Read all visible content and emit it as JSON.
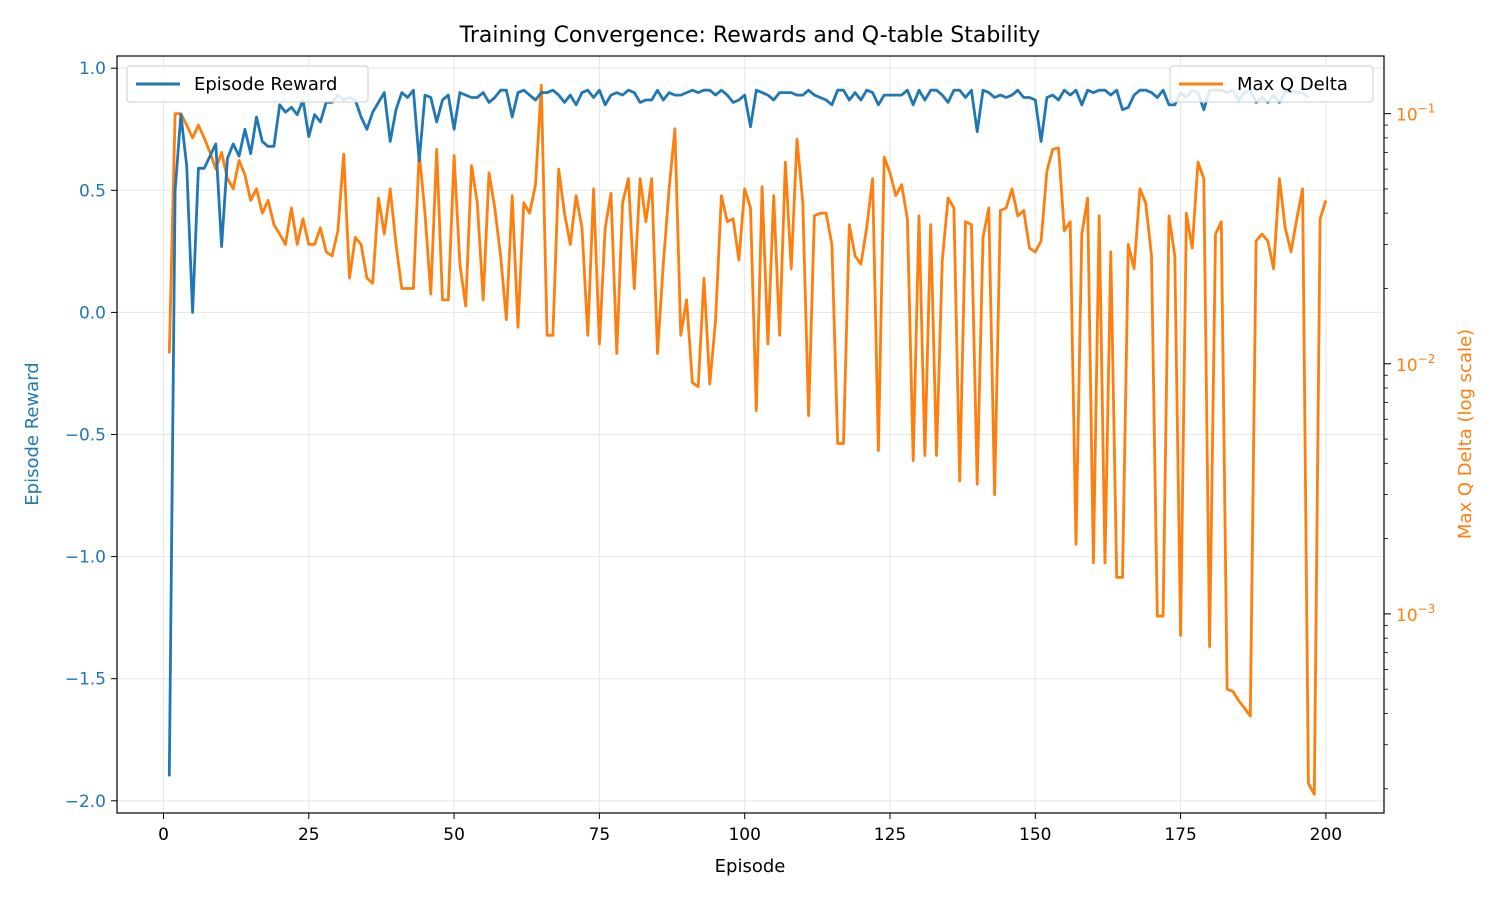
{
  "chart_data": {
    "type": "line",
    "title": "Training Convergence: Rewards and Q-table Stability",
    "xlabel": "Episode",
    "xlim": [
      -8,
      210
    ],
    "xticks": [
      0,
      25,
      50,
      75,
      100,
      125,
      150,
      175,
      200
    ],
    "grid": true,
    "left_axis": {
      "label": "Episode Reward",
      "color": "#1f77b4",
      "ylim": [
        -2.05,
        1.05
      ],
      "ticks": [
        1.0,
        0.5,
        0.0,
        -0.5,
        -1.0,
        -1.5,
        -2.0
      ],
      "tick_labels": [
        "1.0",
        "0.5",
        "0.0",
        "−0.5",
        "−1.0",
        "−1.5",
        "−2.0"
      ]
    },
    "right_axis": {
      "label": "Max Q Delta (log scale)",
      "color": "#ff7f0e",
      "scale": "log",
      "ylim": [
        0.00016,
        0.17
      ],
      "major_ticks": [
        0.001,
        0.01,
        0.1
      ],
      "major_tick_exponents": [
        "−3",
        "−2",
        "−1"
      ],
      "tick_base": "10"
    },
    "legend": [
      {
        "name": "Episode Reward",
        "position": "upper-left"
      },
      {
        "name": "Max Q Delta",
        "position": "upper-right"
      }
    ],
    "series": [
      {
        "name": "Episode Reward",
        "axis": "left",
        "color": "#1f77b4",
        "x_start": 1,
        "values": [
          -1.9,
          0.5,
          0.81,
          0.6,
          0.0,
          0.59,
          0.59,
          0.64,
          0.69,
          0.27,
          0.63,
          0.69,
          0.64,
          0.75,
          0.65,
          0.8,
          0.7,
          0.68,
          0.68,
          0.85,
          0.82,
          0.84,
          0.81,
          0.87,
          0.72,
          0.81,
          0.78,
          0.86,
          0.86,
          0.89,
          0.87,
          0.88,
          0.87,
          0.8,
          0.75,
          0.82,
          0.86,
          0.9,
          0.7,
          0.83,
          0.9,
          0.88,
          0.91,
          0.62,
          0.89,
          0.88,
          0.78,
          0.87,
          0.89,
          0.75,
          0.9,
          0.89,
          0.88,
          0.88,
          0.9,
          0.86,
          0.88,
          0.91,
          0.91,
          0.8,
          0.9,
          0.91,
          0.89,
          0.87,
          0.9,
          0.9,
          0.91,
          0.89,
          0.86,
          0.89,
          0.85,
          0.9,
          0.91,
          0.88,
          0.91,
          0.85,
          0.89,
          0.9,
          0.89,
          0.91,
          0.9,
          0.86,
          0.87,
          0.87,
          0.91,
          0.87,
          0.9,
          0.89,
          0.89,
          0.9,
          0.91,
          0.9,
          0.91,
          0.91,
          0.89,
          0.91,
          0.89,
          0.86,
          0.87,
          0.89,
          0.76,
          0.91,
          0.9,
          0.89,
          0.87,
          0.9,
          0.9,
          0.9,
          0.89,
          0.89,
          0.91,
          0.89,
          0.88,
          0.87,
          0.85,
          0.91,
          0.91,
          0.87,
          0.9,
          0.87,
          0.91,
          0.9,
          0.85,
          0.89,
          0.89,
          0.89,
          0.89,
          0.91,
          0.85,
          0.91,
          0.87,
          0.91,
          0.91,
          0.89,
          0.86,
          0.91,
          0.91,
          0.88,
          0.91,
          0.74,
          0.91,
          0.9,
          0.88,
          0.89,
          0.88,
          0.89,
          0.91,
          0.88,
          0.88,
          0.87,
          0.7,
          0.88,
          0.89,
          0.87,
          0.91,
          0.89,
          0.91,
          0.85,
          0.91,
          0.9,
          0.91,
          0.91,
          0.89,
          0.91,
          0.83,
          0.84,
          0.89,
          0.91,
          0.91,
          0.9,
          0.88,
          0.91,
          0.85,
          0.85,
          0.9,
          0.88,
          0.91,
          0.9,
          0.83,
          0.91,
          0.91,
          0.91,
          0.9,
          0.91,
          0.87,
          0.9,
          0.91,
          0.86,
          0.88,
          0.86,
          0.89,
          0.86,
          0.9,
          0.91,
          0.9,
          0.9,
          0.88
        ]
      },
      {
        "name": "Max Q Delta",
        "axis": "right",
        "color": "#ff7f0e",
        "x_start": 1,
        "values": [
          0.011,
          0.1,
          0.1,
          0.09,
          0.08,
          0.09,
          0.08,
          0.07,
          0.06,
          0.07,
          0.055,
          0.05,
          0.065,
          0.057,
          0.045,
          0.05,
          0.04,
          0.045,
          0.036,
          0.033,
          0.03,
          0.042,
          0.03,
          0.038,
          0.03,
          0.03,
          0.035,
          0.028,
          0.027,
          0.034,
          0.069,
          0.022,
          0.032,
          0.03,
          0.022,
          0.021,
          0.046,
          0.033,
          0.05,
          0.03,
          0.02,
          0.02,
          0.02,
          0.07,
          0.04,
          0.019,
          0.072,
          0.018,
          0.018,
          0.068,
          0.025,
          0.017,
          0.062,
          0.044,
          0.018,
          0.058,
          0.042,
          0.027,
          0.015,
          0.047,
          0.014,
          0.044,
          0.04,
          0.052,
          0.13,
          0.013,
          0.013,
          0.06,
          0.04,
          0.03,
          0.047,
          0.035,
          0.013,
          0.05,
          0.012,
          0.035,
          0.048,
          0.011,
          0.044,
          0.055,
          0.02,
          0.055,
          0.037,
          0.055,
          0.011,
          0.025,
          0.05,
          0.087,
          0.013,
          0.018,
          0.0084,
          0.0081,
          0.022,
          0.0083,
          0.015,
          0.047,
          0.037,
          0.038,
          0.026,
          0.05,
          0.042,
          0.0065,
          0.051,
          0.012,
          0.047,
          0.013,
          0.064,
          0.024,
          0.079,
          0.044,
          0.0062,
          0.039,
          0.04,
          0.04,
          0.03,
          0.0048,
          0.0048,
          0.036,
          0.027,
          0.025,
          0.035,
          0.055,
          0.0045,
          0.067,
          0.058,
          0.047,
          0.052,
          0.038,
          0.0041,
          0.039,
          0.0043,
          0.036,
          0.0043,
          0.026,
          0.046,
          0.042,
          0.0034,
          0.037,
          0.036,
          0.0033,
          0.032,
          0.042,
          0.003,
          0.041,
          0.042,
          0.05,
          0.039,
          0.041,
          0.029,
          0.028,
          0.031,
          0.059,
          0.072,
          0.073,
          0.034,
          0.037,
          0.0019,
          0.033,
          0.046,
          0.0016,
          0.039,
          0.0016,
          0.028,
          0.0014,
          0.0014,
          0.03,
          0.024,
          0.05,
          0.044,
          0.027,
          0.00098,
          0.00098,
          0.039,
          0.027,
          0.00082,
          0.04,
          0.029,
          0.064,
          0.055,
          0.00074,
          0.033,
          0.037,
          0.0005,
          0.00049,
          0.00045,
          0.00042,
          0.00039,
          0.031,
          0.033,
          0.031,
          0.024,
          0.055,
          0.035,
          0.028,
          0.038,
          0.05,
          0.00021,
          0.00019,
          0.038,
          0.045
        ]
      }
    ]
  }
}
